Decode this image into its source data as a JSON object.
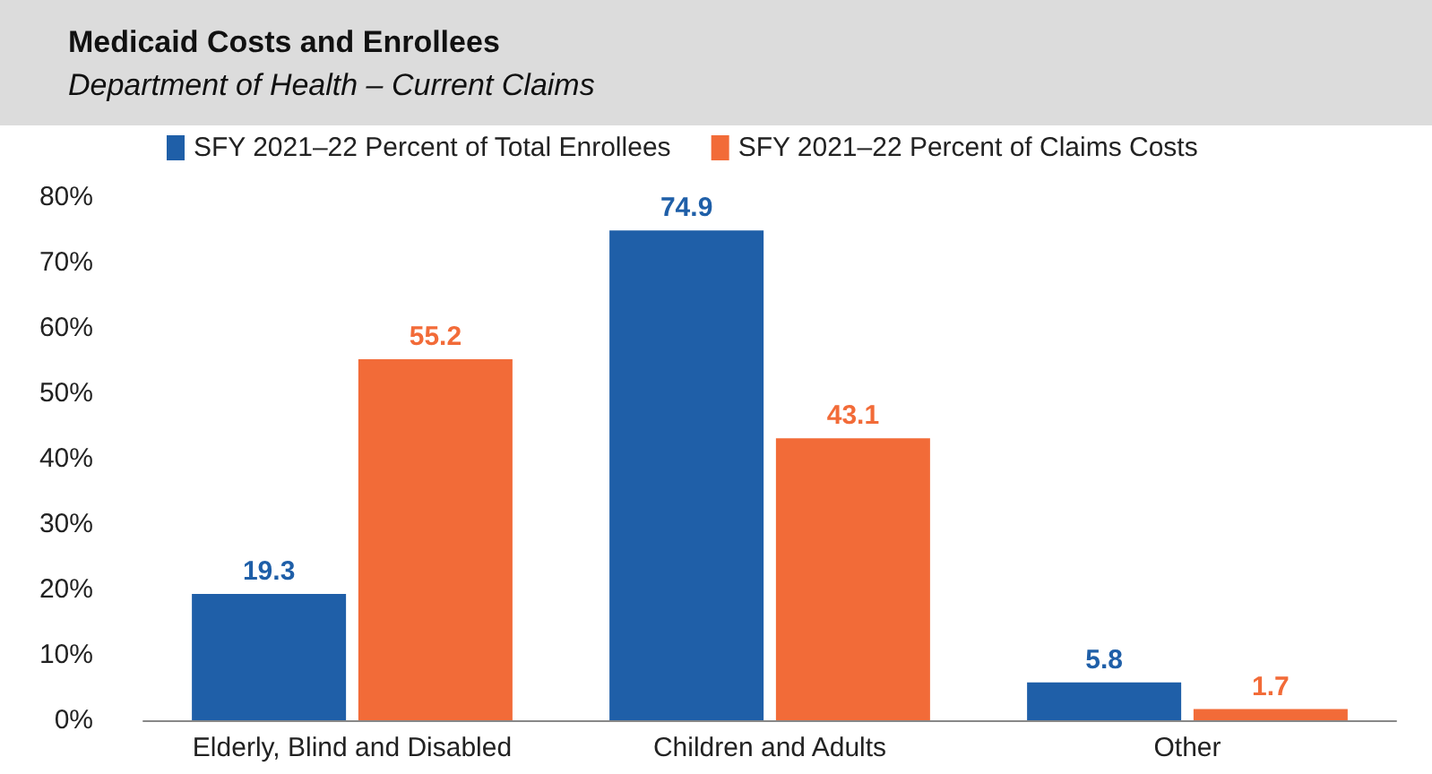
{
  "chart_data": {
    "type": "bar",
    "title": "Medicaid Costs and Enrollees",
    "subtitle": "Department of Health – Current Claims",
    "categories": [
      "Elderly, Blind and Disabled",
      "Children and Adults",
      "Other"
    ],
    "series": [
      {
        "name": "SFY 2021–22 Percent of Total Enrollees",
        "color": "#1f5fa8",
        "values": [
          19.3,
          74.9,
          5.8
        ]
      },
      {
        "name": "SFY 2021–22 Percent of Claims Costs",
        "color": "#f26b38",
        "values": [
          55.2,
          43.1,
          1.7
        ]
      }
    ],
    "ylim": [
      0,
      80
    ],
    "yticks": [
      {
        "value": 0,
        "label": "0%"
      },
      {
        "value": 10,
        "label": "10%"
      },
      {
        "value": 20,
        "label": "20%"
      },
      {
        "value": 30,
        "label": "30%"
      },
      {
        "value": 40,
        "label": "40%"
      },
      {
        "value": 50,
        "label": "50%"
      },
      {
        "value": 60,
        "label": "60%"
      },
      {
        "value": 70,
        "label": "70%"
      },
      {
        "value": 80,
        "label": "80%"
      }
    ],
    "data_labels": true,
    "grid": false,
    "legend": "top"
  }
}
